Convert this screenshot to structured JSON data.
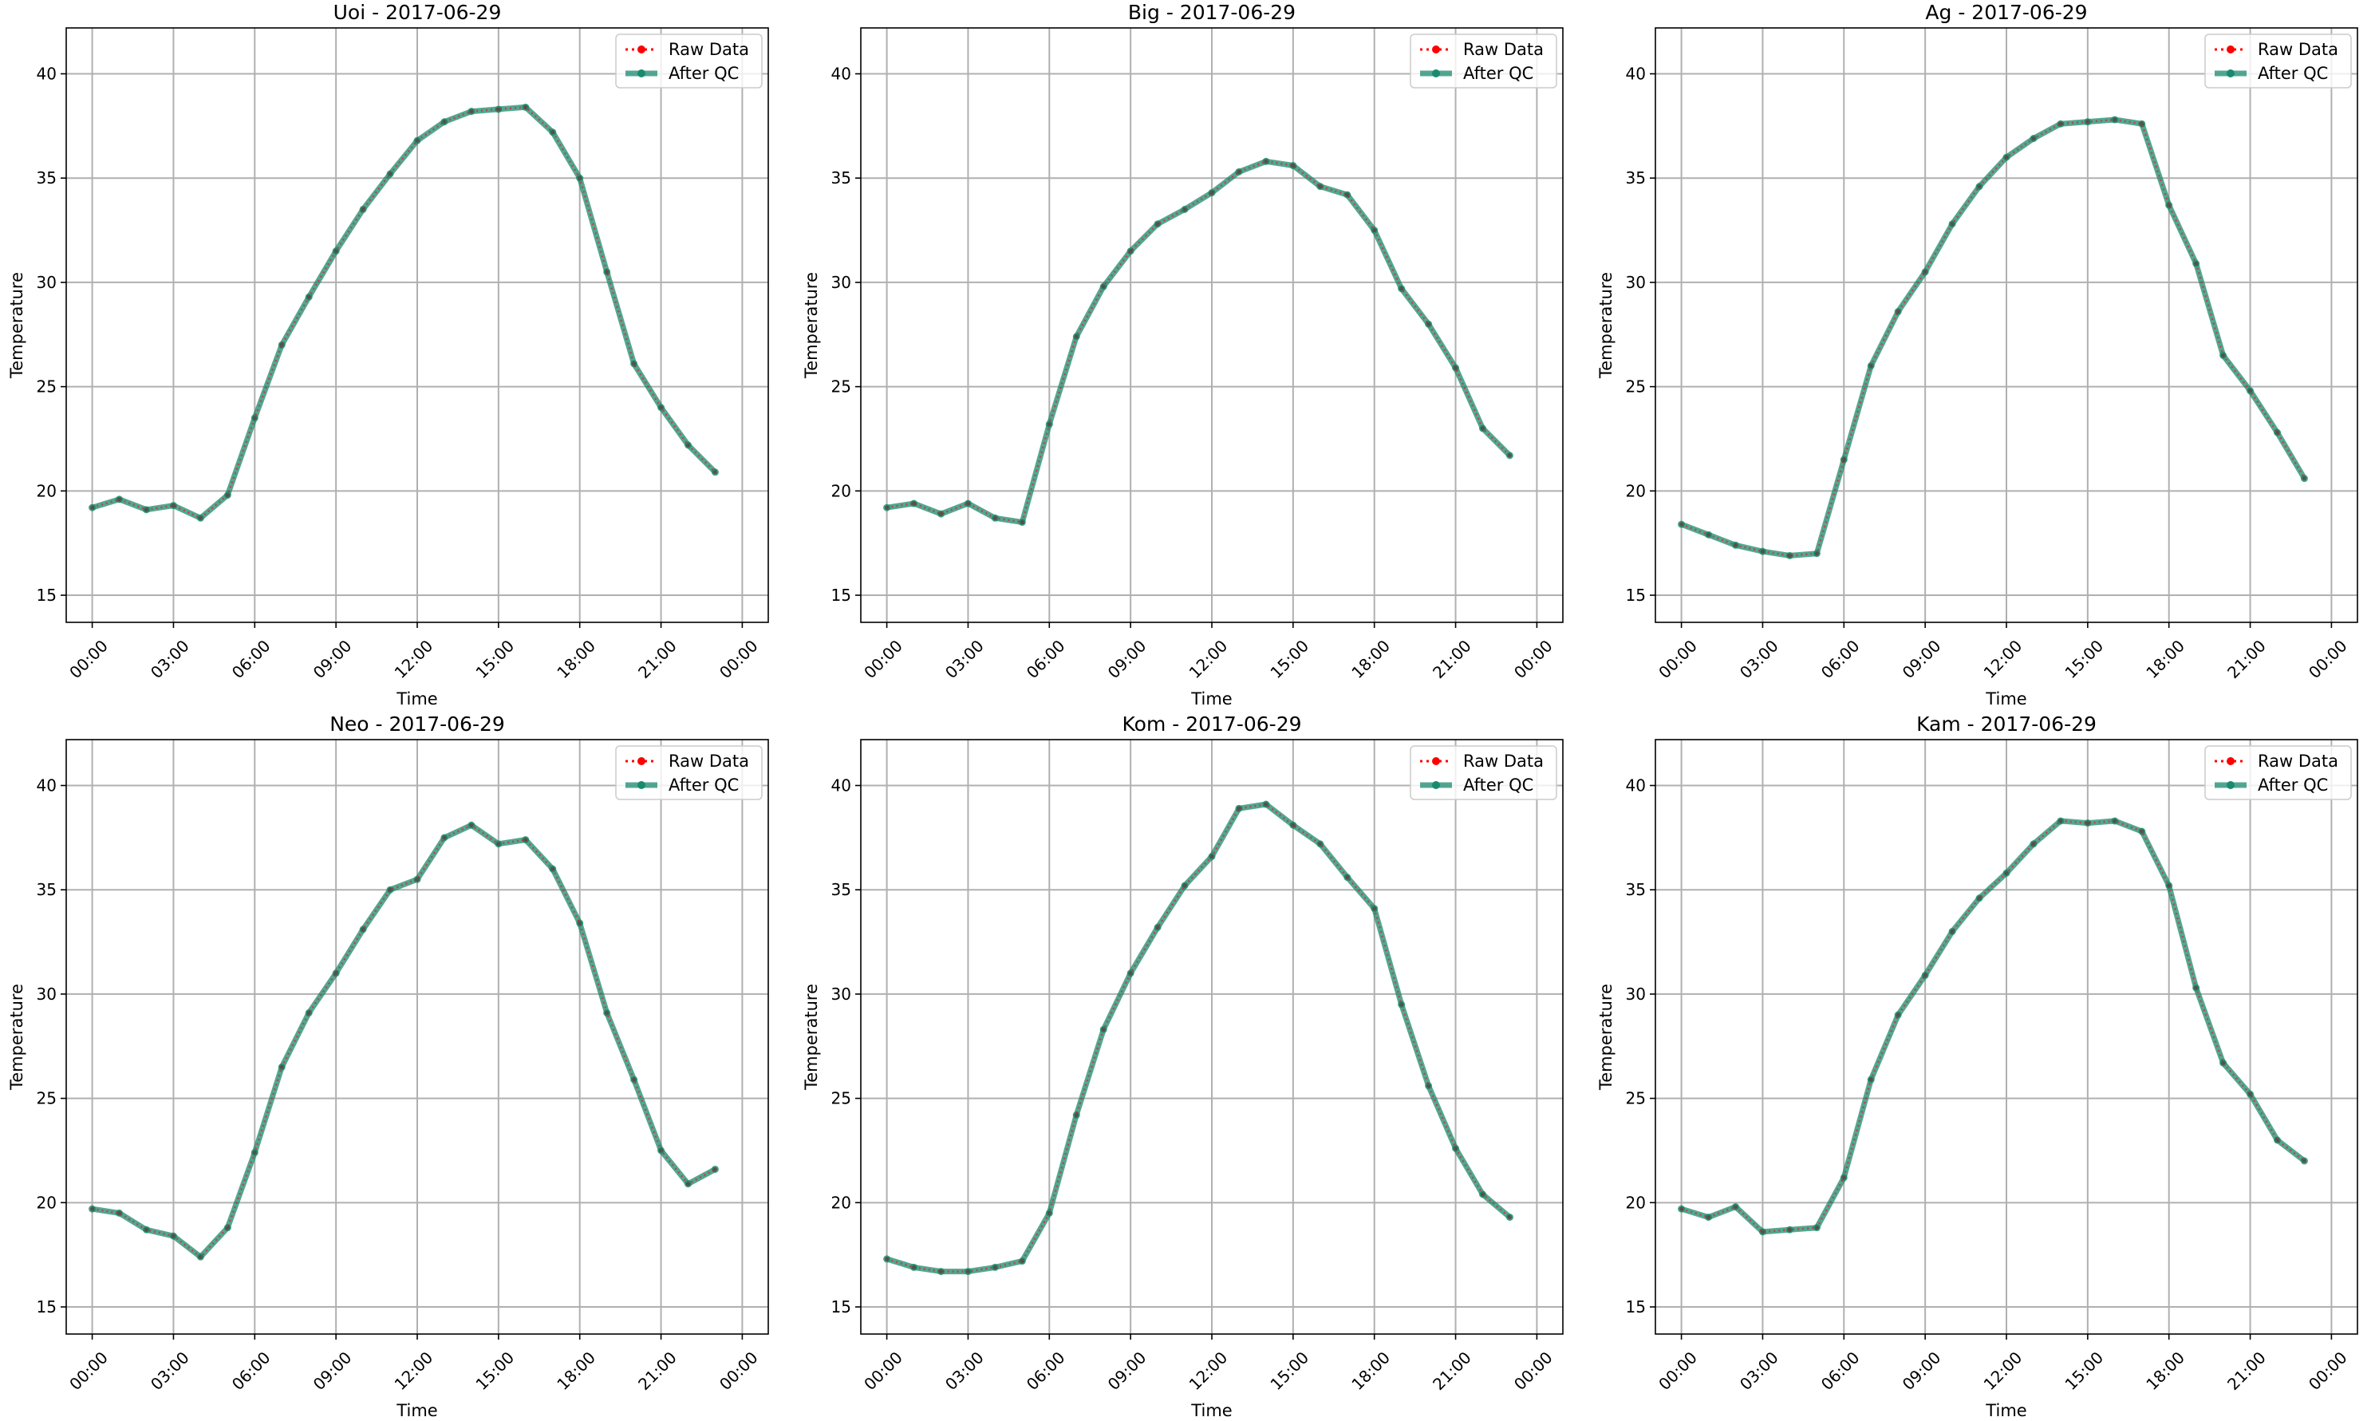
{
  "chart_data": [
    {
      "type": "line",
      "title": "Uoi - 2017-06-29",
      "xlabel": "Time",
      "ylabel": "Temperature",
      "ylim": [
        13.7,
        42.2
      ],
      "yticks": [
        15,
        20,
        25,
        30,
        35,
        40
      ],
      "xticks": [
        "00:00",
        "03:00",
        "06:00",
        "09:00",
        "12:00",
        "15:00",
        "18:00",
        "21:00",
        "00:00"
      ],
      "grid": true,
      "legend": "top-right",
      "hours": [
        0,
        1,
        2,
        3,
        4,
        5,
        6,
        7,
        8,
        9,
        10,
        11,
        12,
        13,
        14,
        15,
        16,
        17,
        18,
        19,
        20,
        21,
        22,
        23
      ],
      "series": [
        {
          "name": "Raw Data",
          "color": "#ff0000",
          "style": "dotted",
          "values": [
            19.2,
            19.6,
            19.1,
            19.3,
            18.7,
            19.8,
            23.5,
            27.0,
            29.3,
            31.5,
            33.5,
            35.2,
            36.8,
            37.7,
            38.2,
            38.3,
            38.4,
            37.2,
            35.0,
            30.5,
            26.1,
            24.0,
            22.2,
            20.9
          ]
        },
        {
          "name": "After QC",
          "color": "#1a8a6e",
          "style": "solid",
          "values": [
            19.2,
            19.6,
            19.1,
            19.3,
            18.7,
            19.8,
            23.5,
            27.0,
            29.3,
            31.5,
            33.5,
            35.2,
            36.8,
            37.7,
            38.2,
            38.3,
            38.4,
            37.2,
            35.0,
            30.5,
            26.1,
            24.0,
            22.2,
            20.9
          ]
        }
      ]
    },
    {
      "type": "line",
      "title": "Big - 2017-06-29",
      "xlabel": "Time",
      "ylabel": "Temperature",
      "ylim": [
        13.7,
        42.2
      ],
      "yticks": [
        15,
        20,
        25,
        30,
        35,
        40
      ],
      "xticks": [
        "00:00",
        "03:00",
        "06:00",
        "09:00",
        "12:00",
        "15:00",
        "18:00",
        "21:00",
        "00:00"
      ],
      "grid": true,
      "legend": "top-right",
      "hours": [
        0,
        1,
        2,
        3,
        4,
        5,
        6,
        7,
        8,
        9,
        10,
        11,
        12,
        13,
        14,
        15,
        16,
        17,
        18,
        19,
        20,
        21,
        22,
        23
      ],
      "series": [
        {
          "name": "Raw Data",
          "color": "#ff0000",
          "style": "dotted",
          "values": [
            19.2,
            19.4,
            18.9,
            19.4,
            18.7,
            18.5,
            23.2,
            27.4,
            29.8,
            31.5,
            32.8,
            33.5,
            34.3,
            35.3,
            35.8,
            35.6,
            34.6,
            34.2,
            32.5,
            29.7,
            28.0,
            25.9,
            23.0,
            21.7
          ]
        },
        {
          "name": "After QC",
          "color": "#1a8a6e",
          "style": "solid",
          "values": [
            19.2,
            19.4,
            18.9,
            19.4,
            18.7,
            18.5,
            23.2,
            27.4,
            29.8,
            31.5,
            32.8,
            33.5,
            34.3,
            35.3,
            35.8,
            35.6,
            34.6,
            34.2,
            32.5,
            29.7,
            28.0,
            25.9,
            23.0,
            21.7
          ]
        }
      ]
    },
    {
      "type": "line",
      "title": "Ag - 2017-06-29",
      "xlabel": "Time",
      "ylabel": "Temperature",
      "ylim": [
        13.7,
        42.2
      ],
      "yticks": [
        15,
        20,
        25,
        30,
        35,
        40
      ],
      "xticks": [
        "00:00",
        "03:00",
        "06:00",
        "09:00",
        "12:00",
        "15:00",
        "18:00",
        "21:00",
        "00:00"
      ],
      "grid": true,
      "legend": "top-right",
      "hours": [
        0,
        1,
        2,
        3,
        4,
        5,
        6,
        7,
        8,
        9,
        10,
        11,
        12,
        13,
        14,
        15,
        16,
        17,
        18,
        19,
        20,
        21,
        22,
        23
      ],
      "series": [
        {
          "name": "Raw Data",
          "color": "#ff0000",
          "style": "dotted",
          "values": [
            18.4,
            17.9,
            17.4,
            17.1,
            16.9,
            17.0,
            21.5,
            26.0,
            28.6,
            30.5,
            32.8,
            34.6,
            36.0,
            36.9,
            37.6,
            37.7,
            37.8,
            37.6,
            33.7,
            30.9,
            26.5,
            24.8,
            22.8,
            20.6
          ]
        },
        {
          "name": "After QC",
          "color": "#1a8a6e",
          "style": "solid",
          "values": [
            18.4,
            17.9,
            17.4,
            17.1,
            16.9,
            17.0,
            21.5,
            26.0,
            28.6,
            30.5,
            32.8,
            34.6,
            36.0,
            36.9,
            37.6,
            37.7,
            37.8,
            37.6,
            33.7,
            30.9,
            26.5,
            24.8,
            22.8,
            20.6
          ]
        }
      ]
    },
    {
      "type": "line",
      "title": "Neo - 2017-06-29",
      "xlabel": "Time",
      "ylabel": "Temperature",
      "ylim": [
        13.7,
        42.2
      ],
      "yticks": [
        15,
        20,
        25,
        30,
        35,
        40
      ],
      "xticks": [
        "00:00",
        "03:00",
        "06:00",
        "09:00",
        "12:00",
        "15:00",
        "18:00",
        "21:00",
        "00:00"
      ],
      "grid": true,
      "legend": "top-right",
      "hours": [
        0,
        1,
        2,
        3,
        4,
        5,
        6,
        7,
        8,
        9,
        10,
        11,
        12,
        13,
        14,
        15,
        16,
        17,
        18,
        19,
        20,
        21,
        22,
        23
      ],
      "series": [
        {
          "name": "Raw Data",
          "color": "#ff0000",
          "style": "dotted",
          "values": [
            19.7,
            19.5,
            18.7,
            18.4,
            17.4,
            18.8,
            22.4,
            26.5,
            29.1,
            31.0,
            33.1,
            35.0,
            35.5,
            37.5,
            38.1,
            37.2,
            37.4,
            36.0,
            33.4,
            29.1,
            25.9,
            22.5,
            20.9,
            21.6
          ]
        },
        {
          "name": "After QC",
          "color": "#1a8a6e",
          "style": "solid",
          "values": [
            19.7,
            19.5,
            18.7,
            18.4,
            17.4,
            18.8,
            22.4,
            26.5,
            29.1,
            31.0,
            33.1,
            35.0,
            35.5,
            37.5,
            38.1,
            37.2,
            37.4,
            36.0,
            33.4,
            29.1,
            25.9,
            22.5,
            20.9,
            21.6
          ]
        }
      ]
    },
    {
      "type": "line",
      "title": "Kom - 2017-06-29",
      "xlabel": "Time",
      "ylabel": "Temperature",
      "ylim": [
        13.7,
        42.2
      ],
      "yticks": [
        15,
        20,
        25,
        30,
        35,
        40
      ],
      "xticks": [
        "00:00",
        "03:00",
        "06:00",
        "09:00",
        "12:00",
        "15:00",
        "18:00",
        "21:00",
        "00:00"
      ],
      "grid": true,
      "legend": "top-right",
      "hours": [
        0,
        1,
        2,
        3,
        4,
        5,
        6,
        7,
        8,
        9,
        10,
        11,
        12,
        13,
        14,
        15,
        16,
        17,
        18,
        19,
        20,
        21,
        22,
        23
      ],
      "series": [
        {
          "name": "Raw Data",
          "color": "#ff0000",
          "style": "dotted",
          "values": [
            17.3,
            16.9,
            16.7,
            16.7,
            16.9,
            17.2,
            19.5,
            24.2,
            28.3,
            31.0,
            33.2,
            35.2,
            36.6,
            38.9,
            39.1,
            38.1,
            37.2,
            35.6,
            34.1,
            29.5,
            25.6,
            22.6,
            20.4,
            19.3
          ]
        },
        {
          "name": "After QC",
          "color": "#1a8a6e",
          "style": "solid",
          "values": [
            17.3,
            16.9,
            16.7,
            16.7,
            16.9,
            17.2,
            19.5,
            24.2,
            28.3,
            31.0,
            33.2,
            35.2,
            36.6,
            38.9,
            39.1,
            38.1,
            37.2,
            35.6,
            34.1,
            29.5,
            25.6,
            22.6,
            20.4,
            19.3
          ]
        }
      ]
    },
    {
      "type": "line",
      "title": "Kam - 2017-06-29",
      "xlabel": "Time",
      "ylabel": "Temperature",
      "ylim": [
        13.7,
        42.2
      ],
      "yticks": [
        15,
        20,
        25,
        30,
        35,
        40
      ],
      "xticks": [
        "00:00",
        "03:00",
        "06:00",
        "09:00",
        "12:00",
        "15:00",
        "18:00",
        "21:00",
        "00:00"
      ],
      "grid": true,
      "legend": "top-right",
      "hours": [
        0,
        1,
        2,
        3,
        4,
        5,
        6,
        7,
        8,
        9,
        10,
        11,
        12,
        13,
        14,
        15,
        16,
        17,
        18,
        19,
        20,
        21,
        22,
        23
      ],
      "series": [
        {
          "name": "Raw Data",
          "color": "#ff0000",
          "style": "dotted",
          "values": [
            19.7,
            19.3,
            19.8,
            18.6,
            18.7,
            18.8,
            21.2,
            25.9,
            29.0,
            30.9,
            33.0,
            34.6,
            35.8,
            37.2,
            38.3,
            38.2,
            38.3,
            37.8,
            35.2,
            30.3,
            26.7,
            25.2,
            23.0,
            22.0
          ]
        },
        {
          "name": "After QC",
          "color": "#1a8a6e",
          "style": "solid",
          "values": [
            19.7,
            19.3,
            19.8,
            18.6,
            18.7,
            18.8,
            21.2,
            25.9,
            29.0,
            30.9,
            33.0,
            34.6,
            35.8,
            37.2,
            38.3,
            38.2,
            38.3,
            37.8,
            35.2,
            30.3,
            26.7,
            25.2,
            23.0,
            22.0
          ]
        }
      ]
    }
  ]
}
